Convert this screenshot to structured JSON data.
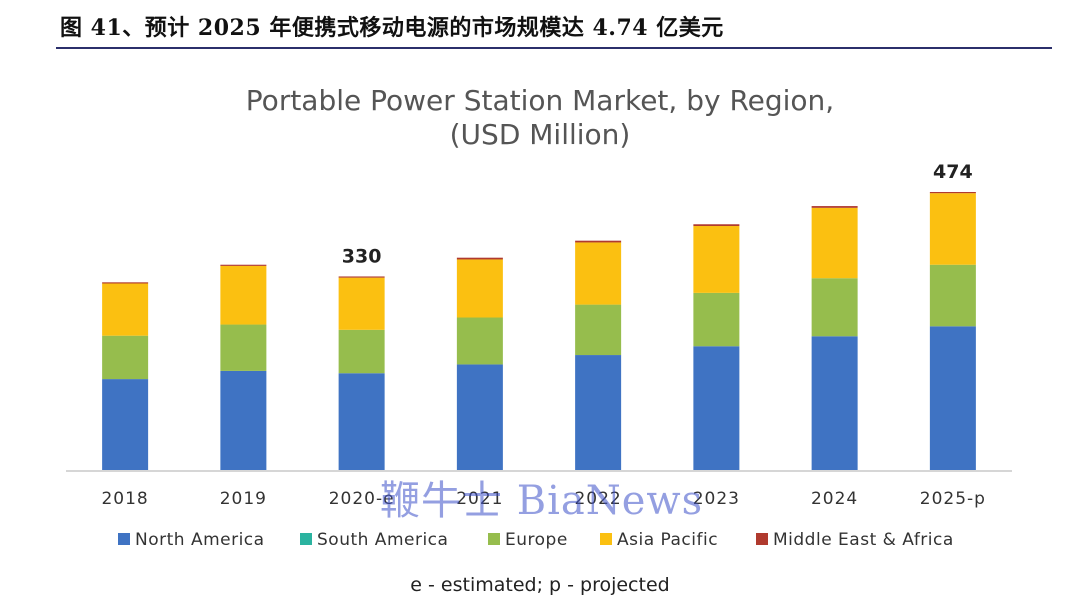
{
  "figure_caption": "图 41、预计 2025 年便携式移动电源的市场规模达 4.74 亿美元",
  "footnote": "e - estimated; p - projected",
  "watermark": "鞭牛士 BiaNews",
  "colors": {
    "north_america": "#3f73c3",
    "south_america": "#2bb3a0",
    "europe": "#96bd4d",
    "asia_pacific": "#fbc011",
    "middle_east_africa": "#b03a2e",
    "axis": "#c8c8c8",
    "caption_rule": "#2b2f6b"
  },
  "chart_data": {
    "type": "bar",
    "stacked": true,
    "title": "Portable Power Station Market, by Region,",
    "subtitle": "(USD Million)",
    "categories": [
      "2018",
      "2019",
      "2020-e",
      "2021",
      "2022",
      "2023",
      "2024",
      "2025-p"
    ],
    "series": [
      {
        "name": "North America",
        "color": "#3f73c3",
        "values": [
          155,
          169,
          165,
          180,
          196,
          211,
          228,
          245
        ]
      },
      {
        "name": "South America",
        "color": "#2bb3a0",
        "values": [
          0,
          0,
          0,
          0,
          0,
          0,
          0,
          0
        ]
      },
      {
        "name": "Europe",
        "color": "#96bd4d",
        "values": [
          74,
          79,
          74,
          80,
          86,
          91,
          99,
          105
        ]
      },
      {
        "name": "Asia Pacific",
        "color": "#fbc011",
        "values": [
          89,
          100,
          89,
          99,
          106,
          114,
          120,
          122
        ]
      },
      {
        "name": "Middle East & Africa",
        "color": "#b03a2e",
        "values": [
          2,
          2,
          2,
          3,
          3,
          3,
          3,
          2
        ]
      }
    ],
    "data_labels": [
      {
        "category": "2020-e",
        "text": "330"
      },
      {
        "category": "2025-p",
        "text": "474"
      }
    ],
    "ylim": [
      0,
      520
    ],
    "legend_position": "bottom",
    "grid": false
  }
}
